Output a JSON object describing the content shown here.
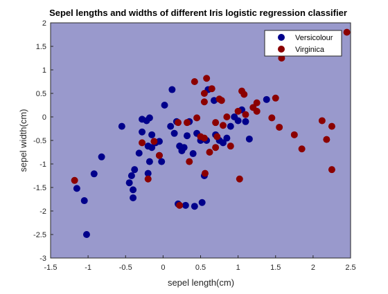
{
  "chart_data": {
    "type": "scatter",
    "title": "Sepel lengths and widths of different Iris logistic regression classifier",
    "xlabel": "sepel length(cm)",
    "ylabel": "sepel width(cm)",
    "xlim": [
      -1.5,
      2.5
    ],
    "ylim": [
      -3,
      2
    ],
    "xticks": [
      -1.5,
      -1,
      -0.5,
      0,
      0.5,
      1,
      1.5,
      2,
      2.5
    ],
    "yticks": [
      -3,
      -2.5,
      -2,
      -1.5,
      -1,
      -0.5,
      0,
      0.5,
      1,
      1.5,
      2
    ],
    "background_color": "#9999cc",
    "grid": false,
    "legend_position": "top-right",
    "series": [
      {
        "name": "Versicolour",
        "color": "#00008b",
        "points": [
          [
            -1.15,
            -1.52
          ],
          [
            -1.05,
            -1.78
          ],
          [
            -1.02,
            -2.5
          ],
          [
            -0.92,
            -1.21
          ],
          [
            -0.82,
            -0.85
          ],
          [
            -0.55,
            -0.2
          ],
          [
            -0.45,
            -1.4
          ],
          [
            -0.42,
            -1.25
          ],
          [
            -0.4,
            -1.72
          ],
          [
            -0.4,
            -1.55
          ],
          [
            -0.38,
            -1.12
          ],
          [
            -0.32,
            -0.77
          ],
          [
            -0.28,
            -0.05
          ],
          [
            -0.28,
            -0.32
          ],
          [
            -0.22,
            -0.08
          ],
          [
            -0.2,
            -1.2
          ],
          [
            -0.2,
            -0.62
          ],
          [
            -0.18,
            -0.02
          ],
          [
            -0.18,
            -0.95
          ],
          [
            -0.15,
            -0.38
          ],
          [
            -0.15,
            -0.65
          ],
          [
            -0.1,
            -0.55
          ],
          [
            -0.05,
            -0.52
          ],
          [
            -0.05,
            -0.82
          ],
          [
            -0.02,
            -0.95
          ],
          [
            0.02,
            0.25
          ],
          [
            0.1,
            -0.2
          ],
          [
            0.12,
            0.58
          ],
          [
            0.15,
            -0.35
          ],
          [
            0.18,
            -0.1
          ],
          [
            0.2,
            -1.85
          ],
          [
            0.22,
            -0.62
          ],
          [
            0.25,
            -0.72
          ],
          [
            0.28,
            -0.65
          ],
          [
            0.3,
            -1.88
          ],
          [
            0.32,
            -0.4
          ],
          [
            0.35,
            -0.1
          ],
          [
            0.4,
            -0.78
          ],
          [
            0.42,
            -1.9
          ],
          [
            0.45,
            -0.35
          ],
          [
            0.5,
            -0.5
          ],
          [
            0.52,
            -1.82
          ],
          [
            0.55,
            -1.25
          ],
          [
            0.58,
            -0.5
          ],
          [
            0.6,
            0.58
          ],
          [
            0.68,
            0.35
          ],
          [
            0.7,
            -0.38
          ],
          [
            0.75,
            -0.5
          ],
          [
            0.8,
            -0.55
          ],
          [
            0.85,
            -0.45
          ],
          [
            0.9,
            -0.2
          ],
          [
            0.95,
            0.0
          ],
          [
            1.0,
            -0.08
          ],
          [
            1.05,
            0.15
          ],
          [
            1.1,
            -0.1
          ],
          [
            1.15,
            -0.47
          ],
          [
            1.38,
            0.37
          ],
          [
            2.25,
            1.75
          ]
        ]
      },
      {
        "name": "Virginica",
        "color": "#8b0000",
        "points": [
          [
            -1.18,
            -1.35
          ],
          [
            -0.28,
            -0.55
          ],
          [
            -0.2,
            -1.32
          ],
          [
            -0.12,
            -0.52
          ],
          [
            -0.05,
            -0.82
          ],
          [
            0.2,
            -0.12
          ],
          [
            0.22,
            -1.88
          ],
          [
            0.32,
            -0.12
          ],
          [
            0.35,
            -0.95
          ],
          [
            0.42,
            0.75
          ],
          [
            0.45,
            -0.02
          ],
          [
            0.5,
            -0.42
          ],
          [
            0.55,
            -0.45
          ],
          [
            0.55,
            0.32
          ],
          [
            0.55,
            0.5
          ],
          [
            0.56,
            -1.2
          ],
          [
            0.58,
            0.82
          ],
          [
            0.62,
            -0.75
          ],
          [
            0.65,
            0.6
          ],
          [
            0.7,
            -0.65
          ],
          [
            0.7,
            -0.12
          ],
          [
            0.72,
            -0.42
          ],
          [
            0.75,
            0.38
          ],
          [
            0.78,
            0.35
          ],
          [
            0.8,
            -0.18
          ],
          [
            0.85,
            0.0
          ],
          [
            0.9,
            -0.62
          ],
          [
            1.0,
            0.12
          ],
          [
            1.02,
            -1.32
          ],
          [
            1.05,
            0.55
          ],
          [
            1.08,
            0.48
          ],
          [
            1.1,
            0.05
          ],
          [
            1.2,
            0.2
          ],
          [
            1.25,
            0.3
          ],
          [
            1.25,
            0.12
          ],
          [
            1.45,
            -0.02
          ],
          [
            1.5,
            0.4
          ],
          [
            1.58,
            1.25
          ],
          [
            1.55,
            -0.22
          ],
          [
            1.75,
            -0.38
          ],
          [
            1.85,
            -0.68
          ],
          [
            2.12,
            -0.08
          ],
          [
            2.18,
            -0.48
          ],
          [
            2.25,
            -1.12
          ],
          [
            2.25,
            -0.2
          ],
          [
            2.45,
            1.8
          ]
        ]
      }
    ]
  }
}
